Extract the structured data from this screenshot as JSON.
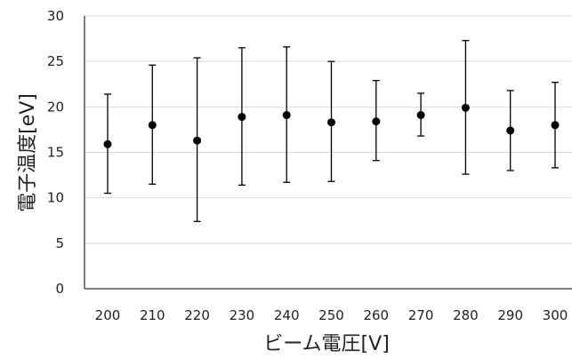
{
  "chart_data": {
    "type": "scatter",
    "title": "",
    "xlabel": "ビーム電圧[V]",
    "ylabel": "電子温度[eV]",
    "x": [
      200,
      210,
      220,
      230,
      240,
      250,
      260,
      270,
      280,
      290,
      300
    ],
    "y": [
      15.9,
      18.0,
      16.3,
      18.9,
      19.1,
      18.3,
      18.4,
      19.1,
      19.9,
      17.4,
      18.0
    ],
    "error_low": [
      10.5,
      11.5,
      7.4,
      11.4,
      11.7,
      11.8,
      14.1,
      16.8,
      12.6,
      13.0,
      13.3
    ],
    "error_high": [
      21.4,
      24.6,
      25.4,
      26.5,
      26.6,
      25.0,
      22.9,
      21.5,
      27.3,
      21.8,
      22.7
    ],
    "ylim": [
      0,
      30
    ],
    "yticks": [
      0,
      5,
      10,
      15,
      20,
      25,
      30
    ],
    "xtick_labels": [
      "200",
      "210",
      "220",
      "230",
      "240",
      "250",
      "260",
      "270",
      "280",
      "290",
      "300"
    ],
    "grid": true,
    "legend": "none",
    "colors": {
      "marker": "#000000",
      "error_bar": "#000000",
      "grid": "#d9d9d9",
      "axis": "#000000"
    }
  }
}
